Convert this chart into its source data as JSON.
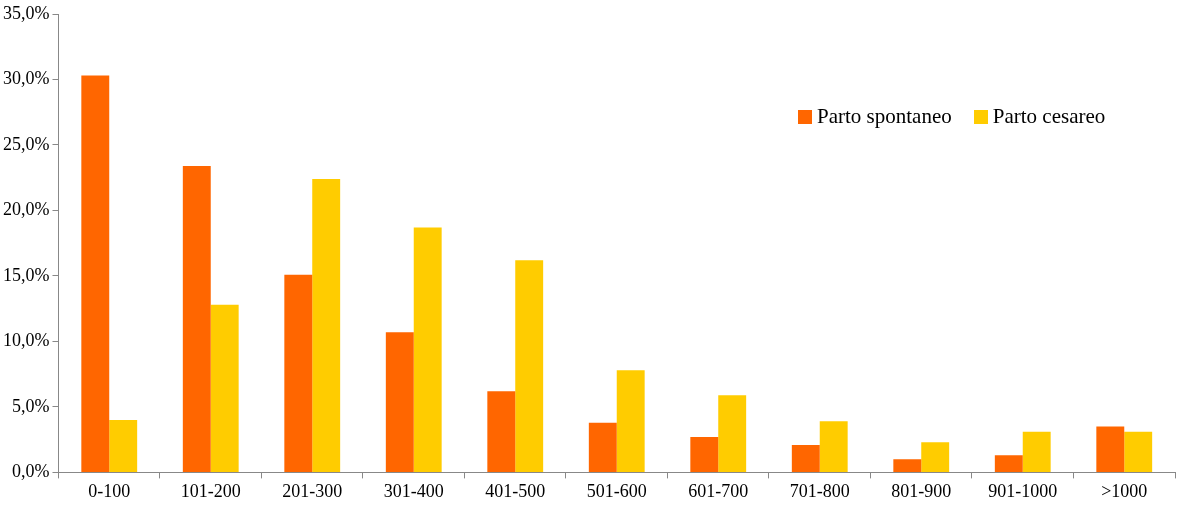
{
  "chart_data": {
    "type": "bar",
    "categories": [
      "0-100",
      "101-200",
      "201-300",
      "301-400",
      "401-500",
      "501-600",
      "601-700",
      "701-800",
      "801-900",
      "901-1000",
      ">1000"
    ],
    "series": [
      {
        "name": "Parto spontaneo",
        "color": "#ff6600",
        "values": [
          30.3,
          23.4,
          15.1,
          10.7,
          6.2,
          3.8,
          2.7,
          2.1,
          1.0,
          1.3,
          3.5
        ]
      },
      {
        "name": "Parto cesareo",
        "color": "#ffcc00",
        "values": [
          4.0,
          12.8,
          22.4,
          18.7,
          16.2,
          7.8,
          5.9,
          3.9,
          2.3,
          3.1,
          3.1
        ]
      }
    ],
    "ylim": [
      0,
      35
    ],
    "yticks": [
      {
        "value": 0,
        "label": "0,0%"
      },
      {
        "value": 5,
        "label": "5,0%"
      },
      {
        "value": 10,
        "label": "10,0%"
      },
      {
        "value": 15,
        "label": "15,0%"
      },
      {
        "value": 20,
        "label": "20,0%"
      },
      {
        "value": 25,
        "label": "25,0%"
      },
      {
        "value": 30,
        "label": "30,0%"
      },
      {
        "value": 35,
        "label": "35,0%"
      }
    ],
    "grid": false,
    "legend": "top right"
  }
}
